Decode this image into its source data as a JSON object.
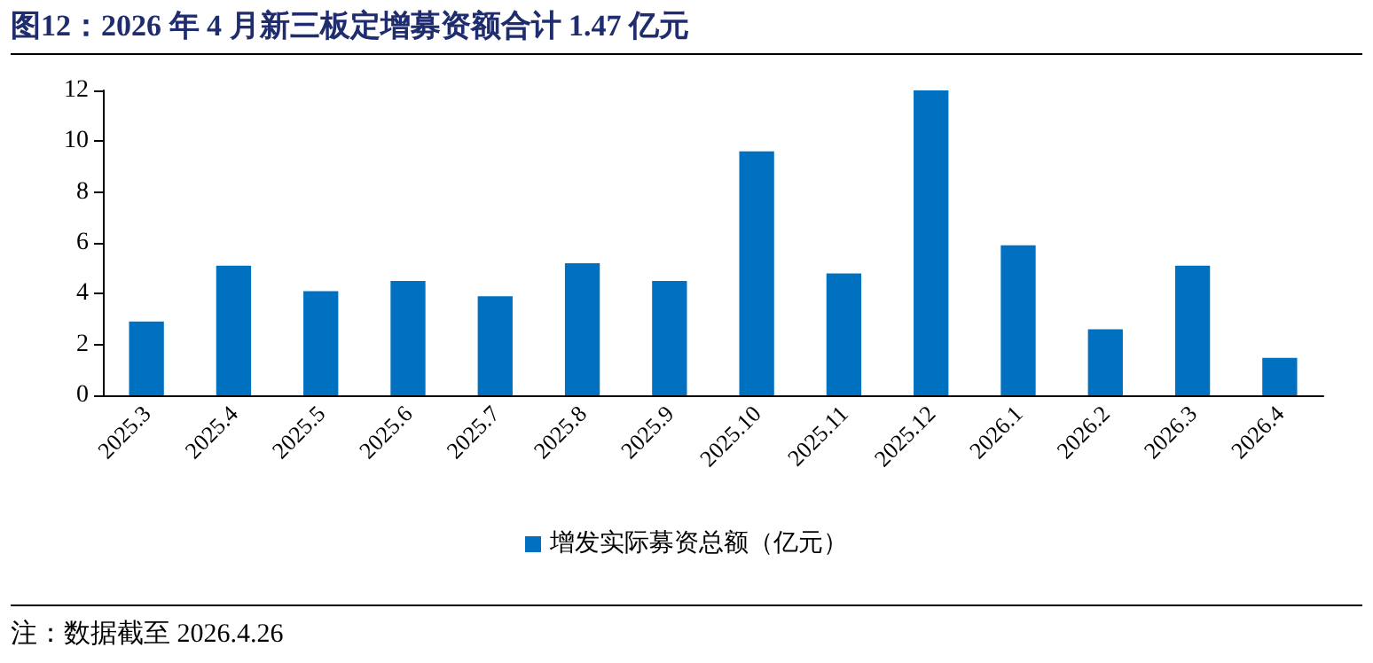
{
  "chart_data": {
    "type": "bar",
    "title": "图12：2026 年 4 月新三板定增募资额合计 1.47 亿元",
    "categories": [
      "2025.3",
      "2025.4",
      "2025.5",
      "2025.6",
      "2025.7",
      "2025.8",
      "2025.9",
      "2025.10",
      "2025.11",
      "2025.12",
      "2026.1",
      "2026.2",
      "2026.3",
      "2026.4"
    ],
    "series": [
      {
        "name": "增发实际募资总额（亿元）",
        "color": "#0070c0",
        "values": [
          2.9,
          5.1,
          4.1,
          4.5,
          3.9,
          5.2,
          4.5,
          9.6,
          4.8,
          12,
          5.9,
          2.6,
          5.1,
          1.47
        ]
      }
    ],
    "ylim": [
      0,
      12
    ],
    "yticks": [
      0,
      2,
      4,
      6,
      8,
      10,
      12
    ],
    "grid": false,
    "legend": "bottom",
    "annotations": [
      "注：数据截至 2026.4.26"
    ]
  }
}
